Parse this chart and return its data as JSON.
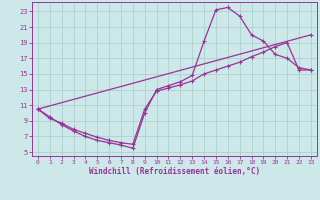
{
  "bg_color": "#cce8e8",
  "grid_color": "#aacccc",
  "line_color": "#993399",
  "xlabel": "Windchill (Refroidissement éolien,°C)",
  "xlim": [
    -0.5,
    23.5
  ],
  "ylim": [
    4.5,
    24.2
  ],
  "xticks": [
    0,
    1,
    2,
    3,
    4,
    5,
    6,
    7,
    8,
    9,
    10,
    11,
    12,
    13,
    14,
    15,
    16,
    17,
    18,
    19,
    20,
    21,
    22,
    23
  ],
  "yticks": [
    5,
    7,
    9,
    11,
    13,
    15,
    17,
    19,
    21,
    23
  ],
  "curve1_x": [
    0,
    1,
    2,
    3,
    4,
    5,
    6,
    7,
    8,
    9,
    10,
    11,
    12,
    13,
    14,
    15,
    16,
    17,
    18,
    19,
    20,
    21,
    22,
    23
  ],
  "curve1_y": [
    10.5,
    9.5,
    8.5,
    7.7,
    7.0,
    6.5,
    6.2,
    5.9,
    5.5,
    10.0,
    13.0,
    13.5,
    14.0,
    14.8,
    19.2,
    23.2,
    23.5,
    22.4,
    20.0,
    19.2,
    17.5,
    17.0,
    15.8,
    15.5
  ],
  "curve2_x": [
    0,
    1,
    2,
    3,
    4,
    5,
    6,
    7,
    8,
    9,
    10,
    11,
    12,
    13,
    14,
    15,
    16,
    17,
    18,
    19,
    20,
    21,
    22,
    23
  ],
  "curve2_y": [
    10.5,
    9.3,
    8.7,
    7.9,
    7.4,
    6.9,
    6.5,
    6.2,
    6.0,
    10.5,
    12.8,
    13.2,
    13.6,
    14.1,
    15.0,
    15.5,
    16.0,
    16.5,
    17.2,
    17.8,
    18.5,
    19.0,
    15.5,
    15.5
  ],
  "curve3_x": [
    0,
    23
  ],
  "curve3_y": [
    10.5,
    20.0
  ]
}
